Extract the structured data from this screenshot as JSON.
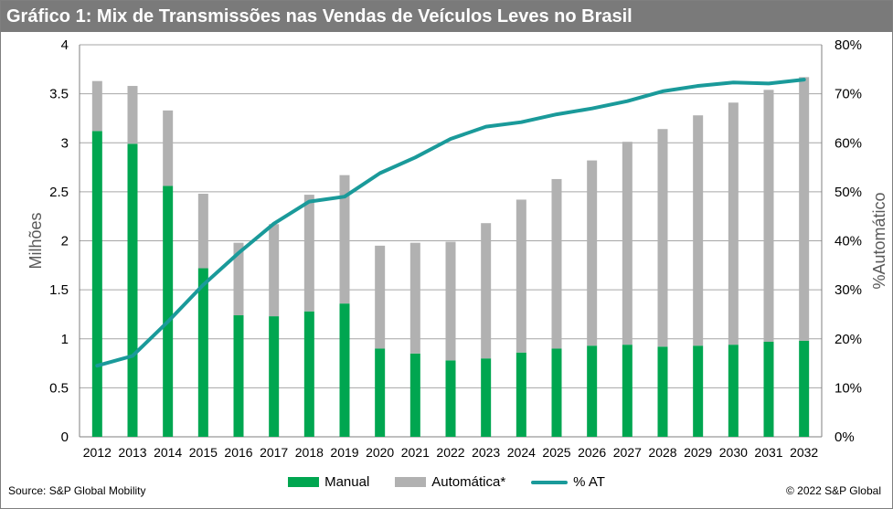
{
  "title": "Gráfico 1: Mix de Transmissões nas Vendas de Veículos Leves no Brasil",
  "footer": {
    "source": "Source: S&P Global Mobility",
    "copyright": "© 2022 S&P Global"
  },
  "chart_data": {
    "type": "bar",
    "stacked": true,
    "categories": [
      "2012",
      "2013",
      "2014",
      "2015",
      "2016",
      "2017",
      "2018",
      "2019",
      "2020",
      "2021",
      "2022",
      "2023",
      "2024",
      "2025",
      "2026",
      "2027",
      "2028",
      "2029",
      "2030",
      "2031",
      "2032"
    ],
    "series": [
      {
        "name": "Manual",
        "type": "bar",
        "axis": "left",
        "color": "#00a650",
        "values": [
          3.12,
          2.99,
          2.56,
          1.72,
          1.24,
          1.23,
          1.28,
          1.36,
          0.9,
          0.85,
          0.78,
          0.8,
          0.86,
          0.9,
          0.93,
          0.94,
          0.92,
          0.93,
          0.94,
          0.97,
          0.98
        ]
      },
      {
        "name": "Automática*",
        "type": "bar",
        "axis": "left",
        "color": "#b1b1b1",
        "values": [
          0.51,
          0.59,
          0.77,
          0.76,
          0.74,
          0.94,
          1.19,
          1.31,
          1.05,
          1.13,
          1.21,
          1.38,
          1.56,
          1.73,
          1.89,
          2.07,
          2.22,
          2.35,
          2.47,
          2.57,
          2.69
        ]
      },
      {
        "name": "% AT",
        "type": "line",
        "axis": "right",
        "color": "#1a9a9a",
        "values": [
          14.5,
          16.5,
          23.5,
          31.0,
          37.5,
          43.5,
          48.0,
          49.0,
          53.8,
          57.0,
          60.8,
          63.3,
          64.2,
          65.8,
          67.0,
          68.5,
          70.5,
          71.6,
          72.3,
          72.1,
          72.9
        ]
      }
    ],
    "yleft": {
      "label": "Milhões",
      "min": 0,
      "max": 4,
      "ticks": [
        "0",
        "0.5",
        "1",
        "1.5",
        "2",
        "2.5",
        "3",
        "3.5",
        "4"
      ]
    },
    "yright": {
      "label": "%Automático",
      "min": 0,
      "max": 80,
      "ticks": [
        "0%",
        "10%",
        "20%",
        "30%",
        "40%",
        "50%",
        "60%",
        "70%",
        "80%"
      ]
    },
    "grid": true,
    "legend": "bottom"
  }
}
